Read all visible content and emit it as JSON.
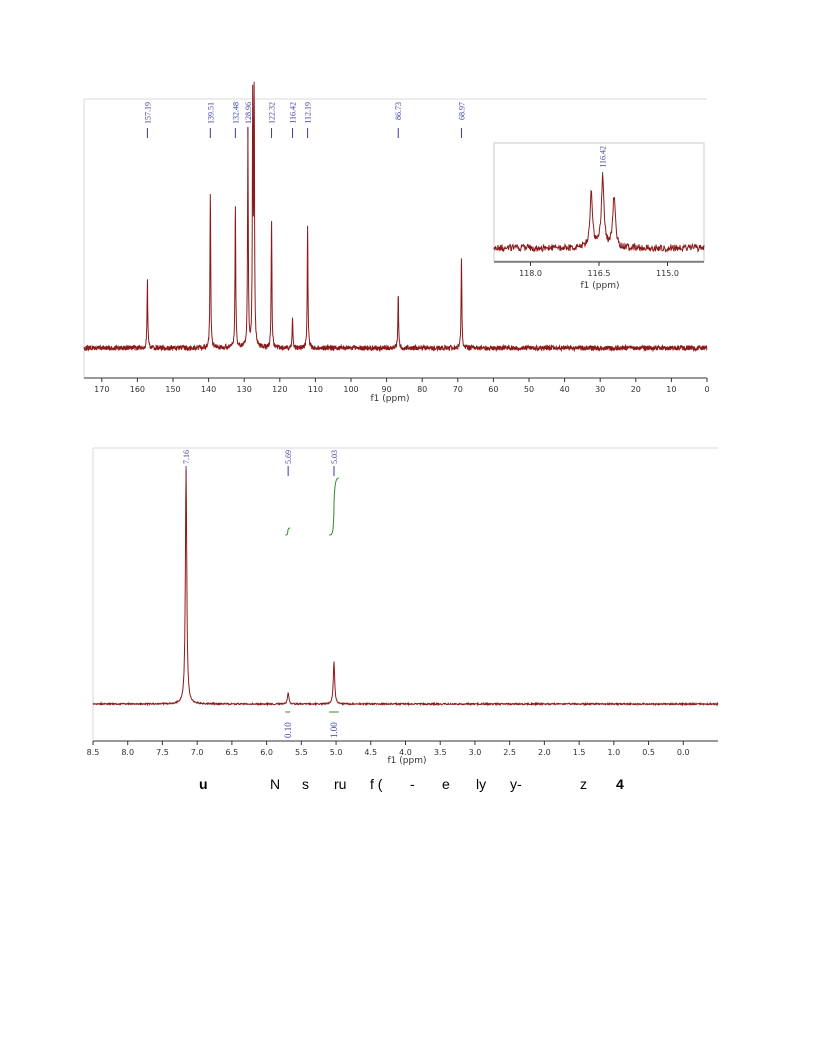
{
  "colors": {
    "spectrum": "#8b1a1a",
    "peak_label": "#3a3aa0",
    "integral": "#2e8b2e",
    "axis": "#333333"
  },
  "chart_data": [
    {
      "type": "line",
      "nucleus": "13C",
      "xlabel": "f1 (ppm)",
      "xlim": [
        175,
        0
      ],
      "x_ticks": [
        "170",
        "160",
        "150",
        "140",
        "130",
        "120",
        "110",
        "100",
        "90",
        "80",
        "70",
        "60",
        "50",
        "40",
        "30",
        "20",
        "10",
        "0"
      ],
      "peak_labels": [
        "157.19",
        "139.51",
        "132.48",
        "128.96",
        "122.32",
        "116.42",
        "112.19",
        "86.73",
        "68.97"
      ],
      "peaks": [
        {
          "x": 157.19,
          "h": 0.28
        },
        {
          "x": 139.51,
          "h": 0.64
        },
        {
          "x": 132.48,
          "h": 0.59
        },
        {
          "x": 128.96,
          "h": 0.88
        },
        {
          "x": 127.6,
          "h": 1.0
        },
        {
          "x": 127.2,
          "h": 1.0
        },
        {
          "x": 122.32,
          "h": 0.53
        },
        {
          "x": 116.42,
          "h": 0.13
        },
        {
          "x": 112.19,
          "h": 0.49
        },
        {
          "x": 86.73,
          "h": 0.22
        },
        {
          "x": 68.97,
          "h": 0.38
        }
      ],
      "inset": {
        "xlabel": "f1 (ppm)",
        "xlim": [
          118.8,
          114.2
        ],
        "x_ticks": [
          "118.0",
          "116.5",
          "115.0"
        ],
        "peak_labels": [
          "116.42"
        ],
        "peaks": [
          {
            "x": 116.67,
            "h": 0.55
          },
          {
            "x": 116.42,
            "h": 0.7
          },
          {
            "x": 116.17,
            "h": 0.52
          }
        ]
      }
    },
    {
      "type": "line",
      "nucleus": "1H",
      "xlabel": "f1 (ppm)",
      "xlim": [
        8.5,
        -0.5
      ],
      "x_ticks": [
        "8.5",
        "8.0",
        "7.5",
        "7.0",
        "6.5",
        "6.0",
        "5.5",
        "5.0",
        "4.5",
        "4.0",
        "3.5",
        "3.0",
        "2.5",
        "2.0",
        "1.5",
        "1.0",
        "0.5",
        "0.0"
      ],
      "peak_labels": [
        "7.16",
        "5.69",
        "5.03"
      ],
      "peaks": [
        {
          "x": 7.16,
          "h": 1.0
        },
        {
          "x": 5.69,
          "h": 0.05
        },
        {
          "x": 5.03,
          "h": 0.18
        }
      ],
      "integrals": [
        {
          "from": 5.73,
          "to": 5.66,
          "value": "0.10"
        },
        {
          "from": 5.1,
          "to": 4.96,
          "value": "1.00"
        }
      ]
    }
  ],
  "caption": [
    "u",
    "N",
    "s",
    "ru",
    "f (",
    "-",
    "e",
    "ly",
    "y-",
    "z",
    "4"
  ]
}
